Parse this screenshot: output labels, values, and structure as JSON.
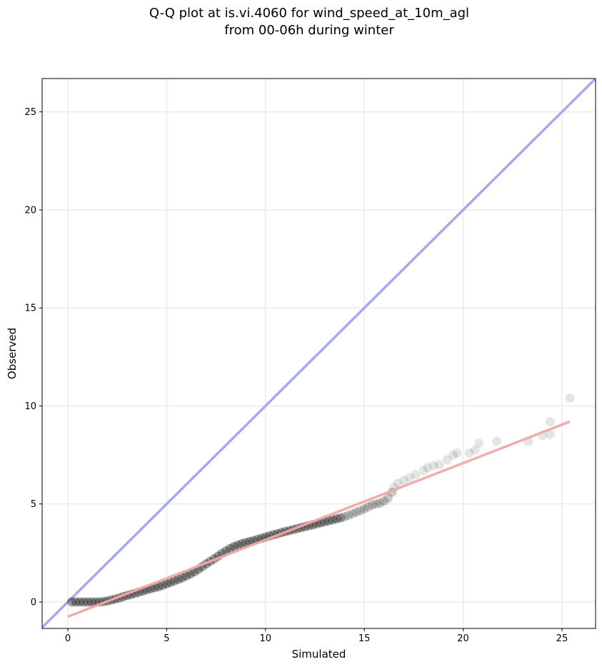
{
  "chart_data": {
    "type": "scatter",
    "title_line1": "Q-Q plot at is.vi.4060 for wind_speed_at_10m_agl",
    "title_line2": "from 00-06h during winter",
    "xlabel": "Simulated",
    "ylabel": "Observed",
    "xlim": [
      -1.3,
      26.7
    ],
    "ylim": [
      -1.35,
      26.7
    ],
    "xticks": [
      0,
      5,
      10,
      15,
      20,
      25
    ],
    "yticks": [
      0,
      5,
      10,
      15,
      20,
      25
    ],
    "grid": true,
    "reference_line": {
      "name": "1:1",
      "color": "#a6a8f1",
      "from": [
        -1.3,
        -1.3
      ],
      "to": [
        26.7,
        26.7
      ]
    },
    "fit_line": {
      "color": "#f5a6a6",
      "from": [
        0,
        -0.75
      ],
      "to": [
        25.4,
        9.2
      ]
    },
    "points_color": "#000000",
    "quantile_points": [
      [
        0.2,
        0.0
      ],
      [
        0.4,
        0.0
      ],
      [
        0.6,
        0.0
      ],
      [
        0.8,
        0.0
      ],
      [
        1.0,
        0.0
      ],
      [
        1.2,
        0.0
      ],
      [
        1.4,
        0.0
      ],
      [
        1.6,
        0.0
      ],
      [
        1.8,
        0.02
      ],
      [
        2.0,
        0.05
      ],
      [
        2.2,
        0.1
      ],
      [
        2.4,
        0.15
      ],
      [
        2.6,
        0.2
      ],
      [
        2.8,
        0.27
      ],
      [
        3.0,
        0.33
      ],
      [
        3.2,
        0.38
      ],
      [
        3.4,
        0.44
      ],
      [
        3.6,
        0.5
      ],
      [
        3.8,
        0.56
      ],
      [
        4.0,
        0.62
      ],
      [
        4.2,
        0.68
      ],
      [
        4.4,
        0.73
      ],
      [
        4.6,
        0.78
      ],
      [
        4.8,
        0.85
      ],
      [
        5.0,
        0.93
      ],
      [
        5.2,
        1.0
      ],
      [
        5.4,
        1.08
      ],
      [
        5.6,
        1.16
      ],
      [
        5.8,
        1.24
      ],
      [
        6.0,
        1.33
      ],
      [
        6.2,
        1.43
      ],
      [
        6.4,
        1.54
      ],
      [
        6.6,
        1.66
      ],
      [
        6.8,
        1.8
      ],
      [
        7.0,
        1.94
      ],
      [
        7.2,
        2.07
      ],
      [
        7.4,
        2.2
      ],
      [
        7.6,
        2.34
      ],
      [
        7.8,
        2.48
      ],
      [
        8.0,
        2.6
      ],
      [
        8.2,
        2.72
      ],
      [
        8.4,
        2.82
      ],
      [
        8.6,
        2.9
      ],
      [
        8.8,
        2.97
      ],
      [
        9.0,
        3.03
      ],
      [
        9.2,
        3.08
      ],
      [
        9.4,
        3.13
      ],
      [
        9.6,
        3.19
      ],
      [
        9.8,
        3.25
      ],
      [
        10.0,
        3.31
      ],
      [
        10.2,
        3.37
      ],
      [
        10.4,
        3.43
      ],
      [
        10.6,
        3.48
      ],
      [
        10.8,
        3.54
      ],
      [
        11.0,
        3.59
      ],
      [
        11.2,
        3.64
      ],
      [
        11.4,
        3.69
      ],
      [
        11.6,
        3.74
      ],
      [
        11.8,
        3.79
      ],
      [
        12.0,
        3.84
      ],
      [
        12.2,
        3.89
      ],
      [
        12.4,
        3.94
      ],
      [
        12.6,
        3.99
      ],
      [
        12.8,
        4.04
      ],
      [
        13.0,
        4.09
      ],
      [
        13.2,
        4.14
      ],
      [
        13.4,
        4.19
      ],
      [
        13.6,
        4.24
      ],
      [
        13.8,
        4.29
      ],
      [
        14.0,
        4.35
      ],
      [
        14.2,
        4.42
      ],
      [
        14.4,
        4.5
      ],
      [
        14.6,
        4.58
      ],
      [
        14.8,
        4.66
      ],
      [
        15.0,
        4.75
      ],
      [
        15.2,
        4.85
      ],
      [
        15.4,
        4.95
      ],
      [
        15.6,
        5.0
      ],
      [
        15.8,
        5.05
      ],
      [
        16.0,
        5.15
      ],
      [
        16.2,
        5.3
      ],
      [
        16.4,
        5.6
      ],
      [
        16.5,
        5.85
      ],
      [
        16.7,
        6.05
      ],
      [
        17.0,
        6.2
      ],
      [
        17.3,
        6.35
      ],
      [
        17.6,
        6.5
      ],
      [
        18.0,
        6.7
      ],
      [
        18.2,
        6.85
      ],
      [
        18.5,
        6.95
      ],
      [
        18.8,
        7.0
      ],
      [
        19.2,
        7.25
      ],
      [
        19.5,
        7.5
      ],
      [
        19.7,
        7.6
      ],
      [
        20.3,
        7.6
      ],
      [
        20.6,
        7.75
      ],
      [
        20.8,
        8.1
      ],
      [
        21.7,
        8.2
      ],
      [
        23.3,
        8.2
      ],
      [
        24.0,
        8.5
      ],
      [
        24.4,
        8.55
      ],
      [
        24.4,
        9.2
      ],
      [
        25.4,
        10.4
      ]
    ]
  }
}
